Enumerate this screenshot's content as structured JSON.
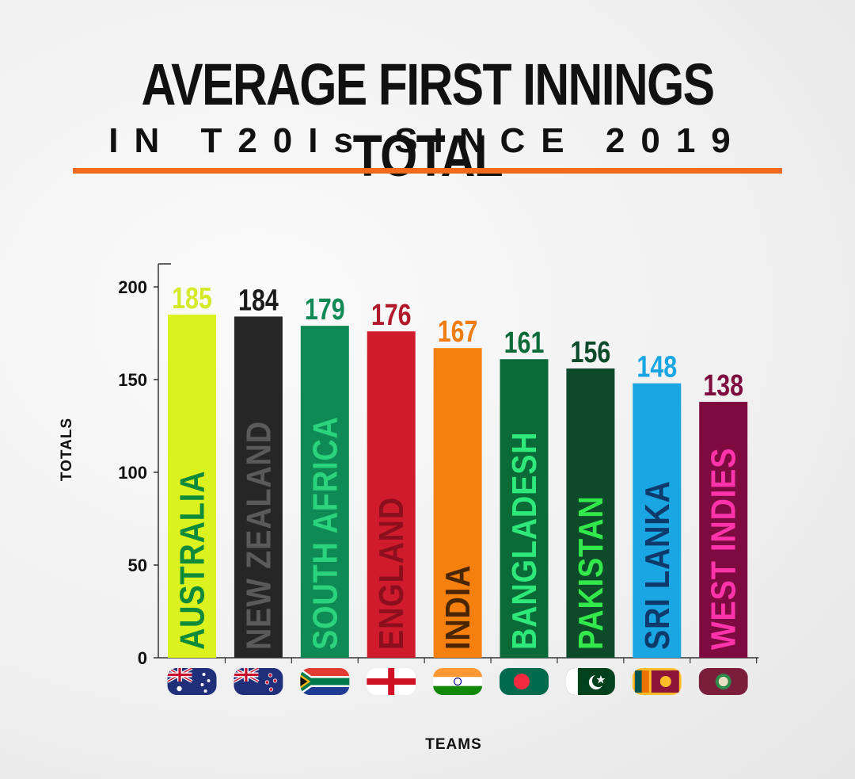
{
  "chart_data": {
    "type": "bar",
    "title": "AVERAGE FIRST INNINGS TOTAL",
    "subtitle": "IN T20Is SINCE 2019",
    "xlabel": "TEAMS",
    "ylabel": "TOTALS",
    "ylim": [
      0,
      200
    ],
    "yticks": [
      "0",
      "50",
      "100",
      "150",
      "200"
    ],
    "grid": false,
    "categories": [
      "AUSTRALIA",
      "NEW ZEALAND",
      "SOUTH AFRICA",
      "ENGLAND",
      "INDIA",
      "BANGLADESH",
      "PAKISTAN",
      "SRI LANKA",
      "WEST INDIES"
    ],
    "values": [
      185,
      184,
      179,
      176,
      167,
      161,
      156,
      148,
      138
    ],
    "value_labels": [
      "185",
      "184",
      "179",
      "176",
      "167",
      "161",
      "156",
      "148",
      "138"
    ],
    "bar_colors": [
      "#dcf21f",
      "#262626",
      "#0f8a55",
      "#cf1b2b",
      "#f6800e",
      "#0a6a38",
      "#0d4a2a",
      "#19a6e3",
      "#7d0b3f"
    ],
    "text_colors": [
      "#0f8a3b",
      "#5a5a5a",
      "#2bd37c",
      "#8c0f1d",
      "#4a2600",
      "#2ee87a",
      "#33e84a",
      "#0d3a6b",
      "#ff33aa"
    ],
    "value_colors": [
      "#d4ea2a",
      "#1a1a1a",
      "#0f8a55",
      "#b01a2a",
      "#f07d13",
      "#0a6a38",
      "#0d4a2a",
      "#19a6e3",
      "#7d0b3f"
    ],
    "flags": [
      "australia-flag-icon",
      "new-zealand-flag-icon",
      "south-africa-flag-icon",
      "england-flag-icon",
      "india-flag-icon",
      "bangladesh-flag-icon",
      "pakistan-flag-icon",
      "sri-lanka-flag-icon",
      "west-indies-flag-icon"
    ]
  },
  "accent_color": "#f26a1b"
}
